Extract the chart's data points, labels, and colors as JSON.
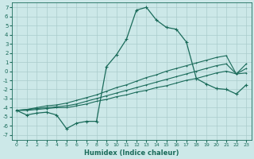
{
  "xlabel": "Humidex (Indice chaleur)",
  "bg_color": "#cce8e8",
  "line_color": "#1a6b5a",
  "grid_color": "#aacccc",
  "xlim": [
    -0.5,
    23.5
  ],
  "ylim": [
    -7.5,
    7.5
  ],
  "xticks": [
    0,
    1,
    2,
    3,
    4,
    5,
    6,
    7,
    8,
    9,
    10,
    11,
    12,
    13,
    14,
    15,
    16,
    17,
    18,
    19,
    20,
    21,
    22,
    23
  ],
  "yticks": [
    -7,
    -6,
    -5,
    -4,
    -3,
    -2,
    -1,
    0,
    1,
    2,
    3,
    4,
    5,
    6,
    7
  ],
  "series_main": [
    -4.3,
    -4.8,
    -4.6,
    -4.5,
    -4.8,
    -6.3,
    -5.7,
    -5.5,
    -5.5,
    0.5,
    1.8,
    3.5,
    6.7,
    7.0,
    5.6,
    4.8,
    4.6,
    3.2,
    -0.8,
    -1.4,
    -1.9,
    -2.0,
    -2.5,
    -1.5
  ],
  "series_lower1": [
    -4.3,
    -4.3,
    -4.2,
    -4.1,
    -4.0,
    -4.0,
    -3.8,
    -3.6,
    -3.3,
    -3.1,
    -2.8,
    -2.6,
    -2.3,
    -2.1,
    -1.8,
    -1.6,
    -1.3,
    -1.0,
    -0.8,
    -0.5,
    -0.2,
    0.0,
    -0.3,
    -0.2
  ],
  "series_lower2": [
    -4.3,
    -4.2,
    -4.1,
    -4.0,
    -3.9,
    -3.8,
    -3.6,
    -3.3,
    -3.0,
    -2.7,
    -2.4,
    -2.1,
    -1.8,
    -1.5,
    -1.2,
    -0.9,
    -0.6,
    -0.3,
    0.0,
    0.3,
    0.6,
    0.8,
    -0.3,
    0.3
  ],
  "series_lower3": [
    -4.3,
    -4.2,
    -4.0,
    -3.8,
    -3.7,
    -3.5,
    -3.2,
    -2.9,
    -2.6,
    -2.2,
    -1.8,
    -1.5,
    -1.1,
    -0.7,
    -0.4,
    0.0,
    0.3,
    0.6,
    0.9,
    1.2,
    1.5,
    1.7,
    -0.3,
    0.8
  ]
}
